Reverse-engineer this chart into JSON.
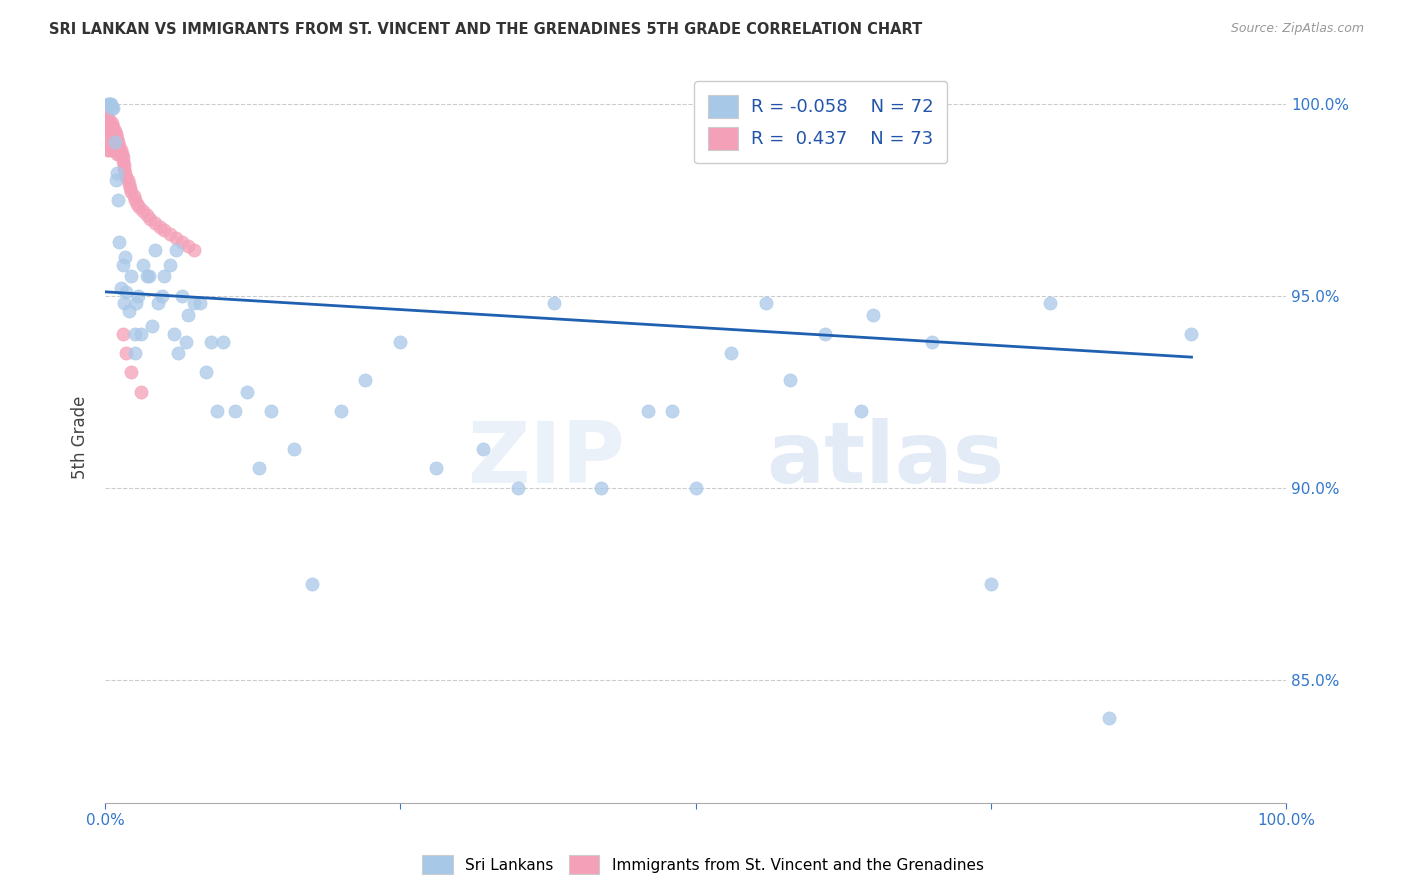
{
  "title": "SRI LANKAN VS IMMIGRANTS FROM ST. VINCENT AND THE GRENADINES 5TH GRADE CORRELATION CHART",
  "source": "Source: ZipAtlas.com",
  "ylabel": "5th Grade",
  "legend_r1": "R = -0.058",
  "legend_n1": "N = 72",
  "legend_r2": "R =  0.437",
  "legend_n2": "N = 73",
  "color_blue": "#a8c8e8",
  "color_pink": "#f4a0b8",
  "trend_color": "#2060b0",
  "watermark_zip": "ZIP",
  "watermark_atlas": "atlas",
  "blue_scatter_x": [
    0.002,
    0.003,
    0.004,
    0.005,
    0.006,
    0.007,
    0.008,
    0.009,
    0.01,
    0.011,
    0.012,
    0.013,
    0.015,
    0.016,
    0.017,
    0.018,
    0.02,
    0.022,
    0.025,
    0.025,
    0.026,
    0.028,
    0.03,
    0.032,
    0.035,
    0.037,
    0.04,
    0.042,
    0.045,
    0.048,
    0.05,
    0.055,
    0.058,
    0.06,
    0.062,
    0.065,
    0.068,
    0.07,
    0.075,
    0.08,
    0.085,
    0.09,
    0.095,
    0.1,
    0.11,
    0.12,
    0.13,
    0.14,
    0.16,
    0.175,
    0.2,
    0.22,
    0.25,
    0.28,
    0.32,
    0.35,
    0.38,
    0.42,
    0.48,
    0.5,
    0.56,
    0.61,
    0.65,
    0.7,
    0.75,
    0.8,
    0.85,
    0.92,
    0.46,
    0.53,
    0.58,
    0.64
  ],
  "blue_scatter_y": [
    1.0,
    1.0,
    1.0,
    1.0,
    0.999,
    0.999,
    0.99,
    0.98,
    0.982,
    0.975,
    0.964,
    0.952,
    0.958,
    0.948,
    0.96,
    0.951,
    0.946,
    0.955,
    0.94,
    0.935,
    0.948,
    0.95,
    0.94,
    0.958,
    0.955,
    0.955,
    0.942,
    0.962,
    0.948,
    0.95,
    0.955,
    0.958,
    0.94,
    0.962,
    0.935,
    0.95,
    0.938,
    0.945,
    0.948,
    0.948,
    0.93,
    0.938,
    0.92,
    0.938,
    0.92,
    0.925,
    0.905,
    0.92,
    0.91,
    0.875,
    0.92,
    0.928,
    0.938,
    0.905,
    0.91,
    0.9,
    0.948,
    0.9,
    0.92,
    0.9,
    0.948,
    0.94,
    0.945,
    0.938,
    0.875,
    0.948,
    0.84,
    0.94,
    0.92,
    0.935,
    0.928,
    0.92
  ],
  "pink_scatter_x": [
    0.001,
    0.001,
    0.001,
    0.001,
    0.002,
    0.002,
    0.002,
    0.002,
    0.002,
    0.003,
    0.003,
    0.003,
    0.003,
    0.003,
    0.004,
    0.004,
    0.004,
    0.004,
    0.005,
    0.005,
    0.005,
    0.006,
    0.006,
    0.006,
    0.006,
    0.007,
    0.007,
    0.007,
    0.007,
    0.008,
    0.008,
    0.008,
    0.009,
    0.009,
    0.009,
    0.01,
    0.01,
    0.01,
    0.011,
    0.011,
    0.012,
    0.012,
    0.013,
    0.014,
    0.015,
    0.015,
    0.016,
    0.016,
    0.017,
    0.018,
    0.019,
    0.02,
    0.021,
    0.022,
    0.024,
    0.025,
    0.027,
    0.029,
    0.032,
    0.035,
    0.038,
    0.042,
    0.046,
    0.05,
    0.055,
    0.06,
    0.065,
    0.07,
    0.075,
    0.015,
    0.018,
    0.022,
    0.03
  ],
  "pink_scatter_y": [
    0.998,
    0.997,
    0.996,
    0.994,
    0.995,
    0.993,
    0.992,
    0.99,
    0.988,
    0.996,
    0.994,
    0.992,
    0.99,
    0.988,
    0.995,
    0.993,
    0.991,
    0.989,
    0.994,
    0.992,
    0.99,
    0.995,
    0.993,
    0.991,
    0.989,
    0.994,
    0.992,
    0.99,
    0.988,
    0.993,
    0.991,
    0.989,
    0.992,
    0.99,
    0.988,
    0.991,
    0.989,
    0.987,
    0.99,
    0.988,
    0.989,
    0.987,
    0.988,
    0.987,
    0.986,
    0.985,
    0.984,
    0.983,
    0.982,
    0.981,
    0.98,
    0.979,
    0.978,
    0.977,
    0.976,
    0.975,
    0.974,
    0.973,
    0.972,
    0.971,
    0.97,
    0.969,
    0.968,
    0.967,
    0.966,
    0.965,
    0.964,
    0.963,
    0.962,
    0.94,
    0.935,
    0.93,
    0.925
  ],
  "trend_x_start": 0.0,
  "trend_x_end": 0.92,
  "trend_y_start": 0.951,
  "trend_y_end": 0.934,
  "xlim": [
    0.0,
    1.0
  ],
  "ylim": [
    0.818,
    1.008
  ]
}
